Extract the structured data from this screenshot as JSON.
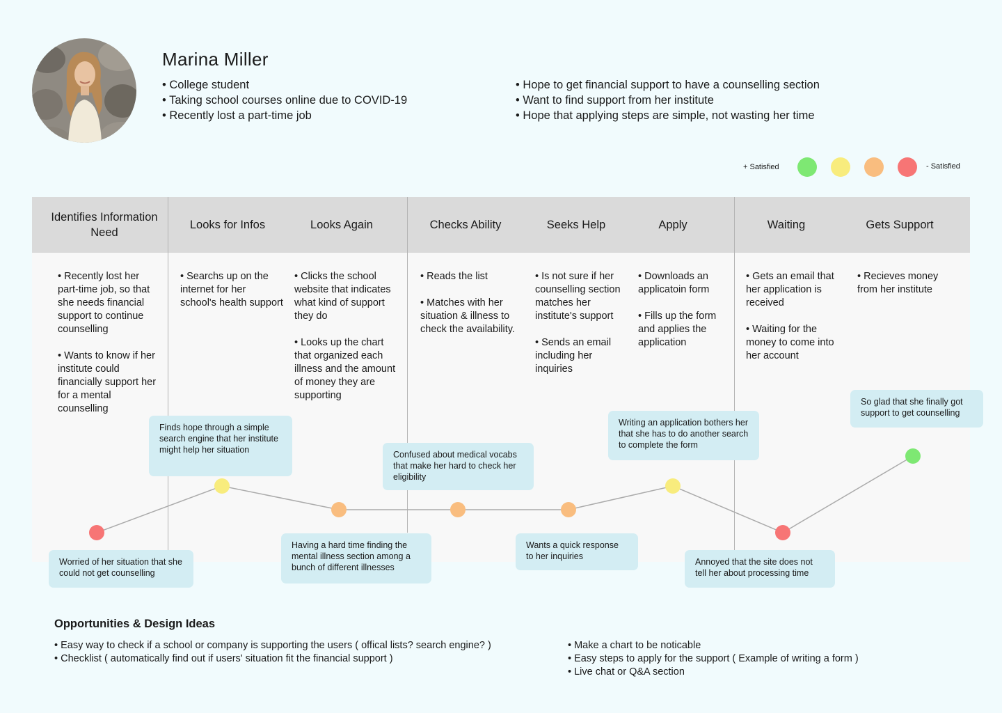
{
  "persona": {
    "name": "Marina Miller",
    "traits": [
      "• College student",
      "• Taking school courses online due to COVID-19",
      "• Recently lost a part-time job"
    ],
    "goals": [
      "• Hope to get financial support to have a counselling section",
      "• Want to find support from her institute",
      "• Hope that applying steps are simple, not wasting her time"
    ]
  },
  "legend": {
    "positive_label": "+ Satisfied",
    "negative_label": "- Satisfied",
    "colors": [
      "#7ee873",
      "#f8ec7d",
      "#f9bd7f",
      "#f77575"
    ]
  },
  "stages": [
    "Identifies Information Need",
    "Looks for Infos",
    "Looks Again",
    "Checks Ability",
    "Seeks Help",
    "Apply",
    "Waiting",
    "Gets Support"
  ],
  "actions": [
    "• Recently lost her part-time job, so that she needs financial support to continue counselling\n\n• Wants to know if her institute could financially support her for a mental counselling",
    "• Searchs up on the internet for her school's health support",
    "• Clicks the school website that indicates what kind of support they do\n\n• Looks up the chart that organized each illness and the amount of money they are supporting",
    "• Reads the list\n\n• Matches with her situation & illness to check the availability.",
    "• Is not sure if her counselling section matches her institute's support\n\n• Sends an email including her inquiries",
    "• Downloads an applicatoin form\n\n• Fills up the form and applies the application",
    "• Gets an email that her application is received\n\n• Waiting for the money to come into her account",
    "• Recieves money from her institute"
  ],
  "emotions": [
    {
      "stage": "Identifies Information Need",
      "level": 4,
      "color": "#f77575",
      "note": "Worried of her situation that she could not get counselling"
    },
    {
      "stage": "Looks for Infos",
      "level": 2,
      "color": "#f8ec7d",
      "note": "Finds hope through a simple search engine that  her institute might help her situation"
    },
    {
      "stage": "Looks Again",
      "level": 3,
      "color": "#f9bd7f",
      "note": "Having a hard time finding the mental illness section among a bunch of different illnesses"
    },
    {
      "stage": "Checks Ability",
      "level": 3,
      "color": "#f9bd7f",
      "note": "Confused about medical vocabs that make her hard to check her eligibility"
    },
    {
      "stage": "Seeks Help",
      "level": 3,
      "color": "#f9bd7f",
      "note": "Wants a quick response to her inquiries"
    },
    {
      "stage": "Apply",
      "level": 2,
      "color": "#f8ec7d",
      "note": "Writing an application bothers her that she has to do another search to complete the form"
    },
    {
      "stage": "Waiting",
      "level": 4,
      "color": "#f77575",
      "note": "Annoyed that the site does not tell her about processing time"
    },
    {
      "stage": "Gets Support",
      "level": 1,
      "color": "#7ee873",
      "note": "So glad that she finally got support to get counselling"
    }
  ],
  "opportunities": {
    "title": "Opportunities & Design Ideas",
    "left": [
      "• Easy way to check if a school or company is supporting the users ( offical lists? search engine? )",
      "• Checklist ( automatically find out if users' situation fit the financial support )"
    ],
    "right": [
      "• Make a chart to be noticable",
      "• Easy steps to apply for the support ( Example of writing a form )",
      "• Live chat or Q&A section"
    ]
  }
}
